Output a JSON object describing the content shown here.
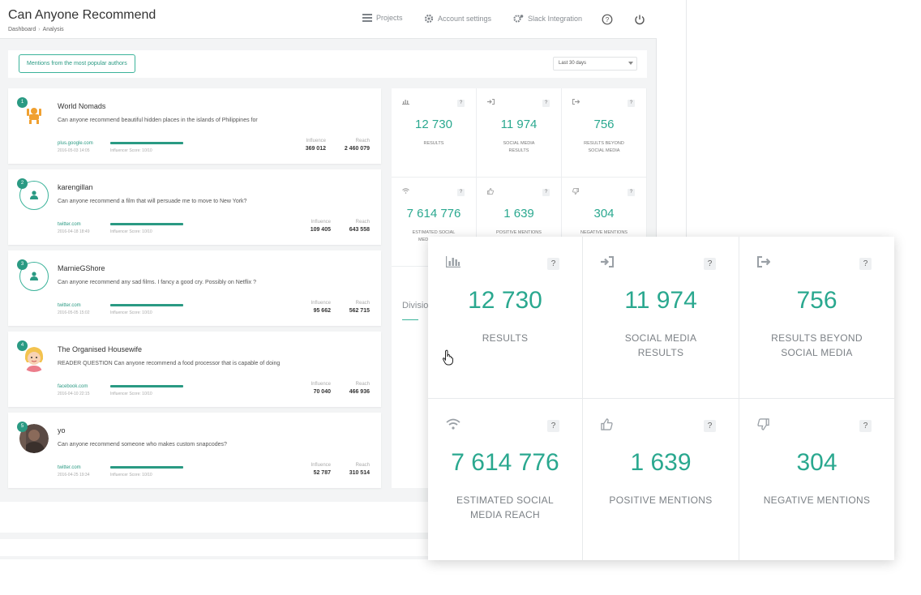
{
  "header": {
    "title": "Can Anyone Recommend",
    "breadcrumb": [
      "Dashboard",
      "Analysis"
    ],
    "nav": {
      "projects": "Projects",
      "account_settings": "Account settings",
      "slack": "Slack Integration"
    }
  },
  "filters": {
    "mentions_button": "Mentions from the most popular authors",
    "period": "Last 30 days"
  },
  "labels": {
    "influence": "Influence",
    "reach": "Reach",
    "influencer_score": "Influencer Score: 10/10"
  },
  "mentions": [
    {
      "rank": "1",
      "name": "World Nomads",
      "text": "Can anyone recommend beautiful hidden places in the islands of Philippines for",
      "source": "plus.google.com",
      "date": "2016-05-03 14:05",
      "influence": "369 012",
      "reach": "2 460 079",
      "avatar": "logo"
    },
    {
      "rank": "2",
      "name": "karengillan",
      "text": "Can anyone recommend a film that will persuade me to move to New York?",
      "source": "twitter.com",
      "date": "2016-04-18 18:49",
      "influence": "109 405",
      "reach": "643 558",
      "avatar": "person-icon"
    },
    {
      "rank": "3",
      "name": "MarnieGShore",
      "text": "Can anyone recommend any sad films. I fancy a good cry. Possibly on Netflix ?",
      "source": "twitter.com",
      "date": "2016-05-05 15:02",
      "influence": "95 662",
      "reach": "562 715",
      "avatar": "person-icon"
    },
    {
      "rank": "4",
      "name": "The Organised Housewife",
      "text": "READER QUESTION Can anyone recommend a food processor that is capable of doing",
      "source": "facebook.com",
      "date": "2016-04-10 22:15",
      "influence": "70 040",
      "reach": "466 936",
      "avatar": "cartoon"
    },
    {
      "rank": "5",
      "name": "yo",
      "text": "Can anyone recommend someone who makes custom snapcodes?",
      "source": "twitter.com",
      "date": "2016-04-25 19:34",
      "influence": "52 787",
      "reach": "310 514",
      "avatar": "photo"
    }
  ],
  "stats": [
    {
      "icon": "bar-chart-icon",
      "value": "12 730",
      "label_lines": [
        "RESULTS"
      ]
    },
    {
      "icon": "sign-in-icon",
      "value": "11 974",
      "label_lines": [
        "SOCIAL MEDIA",
        "RESULTS"
      ]
    },
    {
      "icon": "sign-out-icon",
      "value": "756",
      "label_lines": [
        "RESULTS BEYOND",
        "SOCIAL MEDIA"
      ]
    },
    {
      "icon": "wifi-icon",
      "value": "7 614 776",
      "label_lines": [
        "ESTIMATED SOCIAL",
        "MEDIA REACH"
      ]
    },
    {
      "icon": "thumbs-up-icon",
      "value": "1 639",
      "label_lines": [
        "POSITIVE MENTIONS"
      ]
    },
    {
      "icon": "thumbs-down-icon",
      "value": "304",
      "label_lines": [
        "NEGATIVE MENTIONS"
      ]
    }
  ],
  "help_mark": "?",
  "division_label": "Divisio",
  "colors": {
    "accent": "#2aa88f",
    "accent_dark": "#2a9a83",
    "background": "#f3f4f5"
  }
}
